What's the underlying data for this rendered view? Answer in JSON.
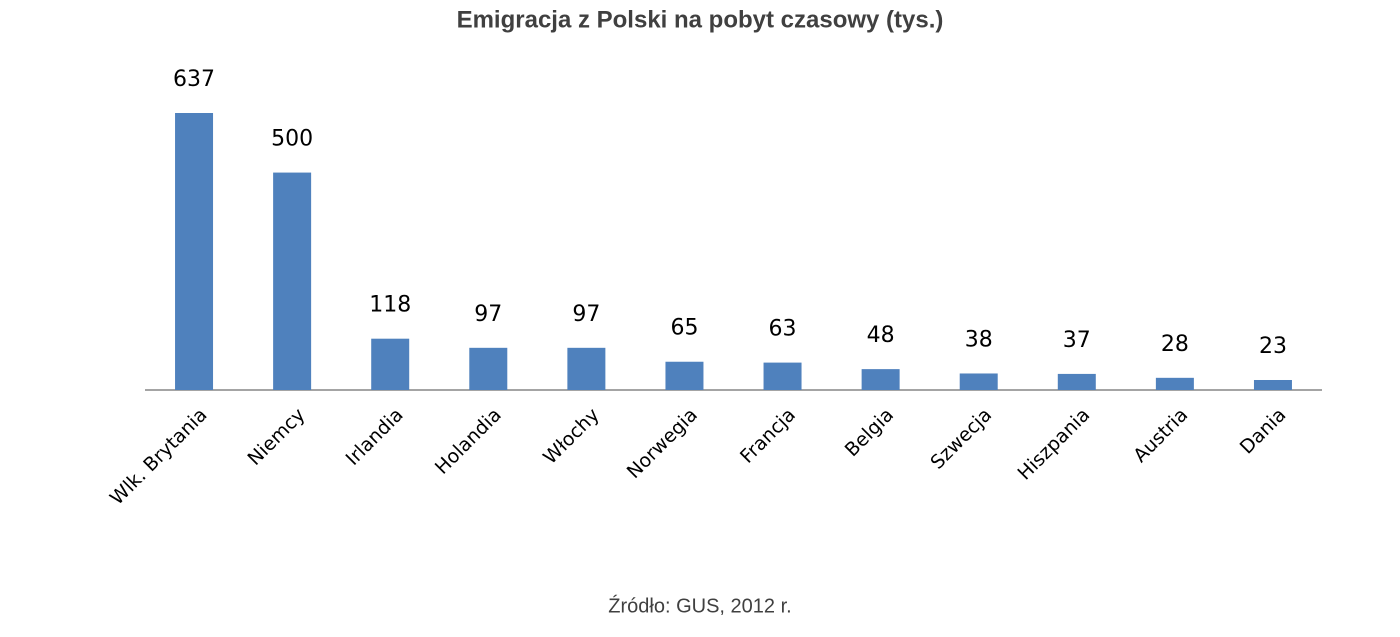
{
  "chart_data": {
    "type": "bar",
    "title": "Emigracja z Polski na pobyt czasowy (tys.)",
    "categories": [
      "Wlk. Brytania",
      "Niemcy",
      "Irlandia",
      "Holandia",
      "Włochy",
      "Norwegia",
      "Francja",
      "Belgia",
      "Szwecja",
      "Hiszpania",
      "Austria",
      "Dania"
    ],
    "values": [
      637,
      500,
      118,
      97,
      97,
      65,
      63,
      48,
      38,
      37,
      28,
      23
    ],
    "color": "#4f81bd",
    "source": "Źródło: GUS, 2012 r."
  }
}
